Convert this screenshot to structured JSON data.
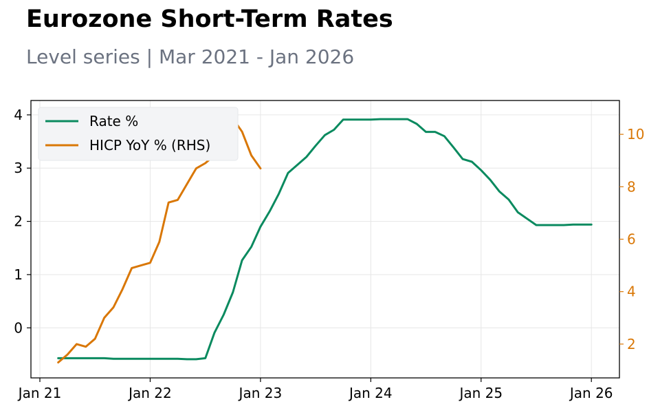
{
  "chart_data": {
    "type": "line",
    "title": "Eurozone Short-Term Rates",
    "subtitle": "Level series | Mar 2021 - Jan 2026",
    "grid": true,
    "legend_position": "top-left",
    "colors": {
      "rate": "#0a8a5f",
      "hicp": "#d97706"
    },
    "x_ticks": [
      "Jan 21",
      "Jan 22",
      "Jan 23",
      "Jan 24",
      "Jan 25",
      "Jan 26"
    ],
    "y_left": {
      "ticks": [
        "0",
        "1",
        "2",
        "3",
        "4"
      ],
      "range": [
        -0.94,
        4.27
      ]
    },
    "y_right": {
      "ticks": [
        "2",
        "4",
        "6",
        "8",
        "10"
      ],
      "range": [
        0.71,
        11.29
      ]
    },
    "series": [
      {
        "name": "Rate %",
        "axis": "left",
        "color": "#0a8a5f",
        "points": [
          [
            "2021-03",
            -0.57
          ],
          [
            "2021-04",
            -0.57
          ],
          [
            "2021-05",
            -0.57
          ],
          [
            "2021-06",
            -0.57
          ],
          [
            "2021-07",
            -0.57
          ],
          [
            "2021-08",
            -0.57
          ],
          [
            "2021-09",
            -0.58
          ],
          [
            "2021-10",
            -0.58
          ],
          [
            "2021-11",
            -0.58
          ],
          [
            "2021-12",
            -0.58
          ],
          [
            "2022-01",
            -0.58
          ],
          [
            "2022-02",
            -0.58
          ],
          [
            "2022-03",
            -0.58
          ],
          [
            "2022-04",
            -0.58
          ],
          [
            "2022-05",
            -0.59
          ],
          [
            "2022-06",
            -0.59
          ],
          [
            "2022-07",
            -0.57
          ],
          [
            "2022-08",
            -0.09
          ],
          [
            "2022-09",
            0.25
          ],
          [
            "2022-10",
            0.67
          ],
          [
            "2022-11",
            1.27
          ],
          [
            "2022-12",
            1.52
          ],
          [
            "2023-01",
            1.9
          ],
          [
            "2023-02",
            2.19
          ],
          [
            "2023-03",
            2.52
          ],
          [
            "2023-04",
            2.91
          ],
          [
            "2023-05",
            3.06
          ],
          [
            "2023-06",
            3.21
          ],
          [
            "2023-07",
            3.42
          ],
          [
            "2023-08",
            3.62
          ],
          [
            "2023-09",
            3.72
          ],
          [
            "2023-10",
            3.91
          ],
          [
            "2023-11",
            3.91
          ],
          [
            "2023-12",
            3.91
          ],
          [
            "2024-01",
            3.91
          ],
          [
            "2024-02",
            3.92
          ],
          [
            "2024-03",
            3.92
          ],
          [
            "2024-04",
            3.92
          ],
          [
            "2024-05",
            3.92
          ],
          [
            "2024-06",
            3.83
          ],
          [
            "2024-07",
            3.68
          ],
          [
            "2024-08",
            3.68
          ],
          [
            "2024-09",
            3.6
          ],
          [
            "2024-10",
            3.39
          ],
          [
            "2024-11",
            3.17
          ],
          [
            "2024-12",
            3.12
          ],
          [
            "2025-01",
            2.96
          ],
          [
            "2025-02",
            2.78
          ],
          [
            "2025-03",
            2.56
          ],
          [
            "2025-04",
            2.41
          ],
          [
            "2025-05",
            2.17
          ],
          [
            "2025-06",
            2.05
          ],
          [
            "2025-07",
            1.93
          ],
          [
            "2025-08",
            1.93
          ],
          [
            "2025-09",
            1.93
          ],
          [
            "2025-10",
            1.93
          ],
          [
            "2025-11",
            1.94
          ],
          [
            "2025-12",
            1.94
          ],
          [
            "2026-01",
            1.94
          ]
        ]
      },
      {
        "name": "HICP YoY % (RHS)",
        "axis": "right",
        "color": "#d97706",
        "points": [
          [
            "2021-03",
            1.3
          ],
          [
            "2021-04",
            1.6
          ],
          [
            "2021-05",
            2.0
          ],
          [
            "2021-06",
            1.9
          ],
          [
            "2021-07",
            2.2
          ],
          [
            "2021-08",
            3.0
          ],
          [
            "2021-09",
            3.4
          ],
          [
            "2021-10",
            4.1
          ],
          [
            "2021-11",
            4.9
          ],
          [
            "2021-12",
            5.0
          ],
          [
            "2022-01",
            5.1
          ],
          [
            "2022-02",
            5.9
          ],
          [
            "2022-03",
            7.4
          ],
          [
            "2022-04",
            7.5
          ],
          [
            "2022-05",
            8.1
          ],
          [
            "2022-06",
            8.7
          ],
          [
            "2022-07",
            8.9
          ],
          [
            "2022-08",
            9.2
          ],
          [
            "2022-09",
            9.9
          ],
          [
            "2022-10",
            10.6
          ],
          [
            "2022-11",
            10.1
          ],
          [
            "2022-12",
            9.2
          ],
          [
            "2023-01",
            8.7
          ]
        ]
      }
    ]
  }
}
